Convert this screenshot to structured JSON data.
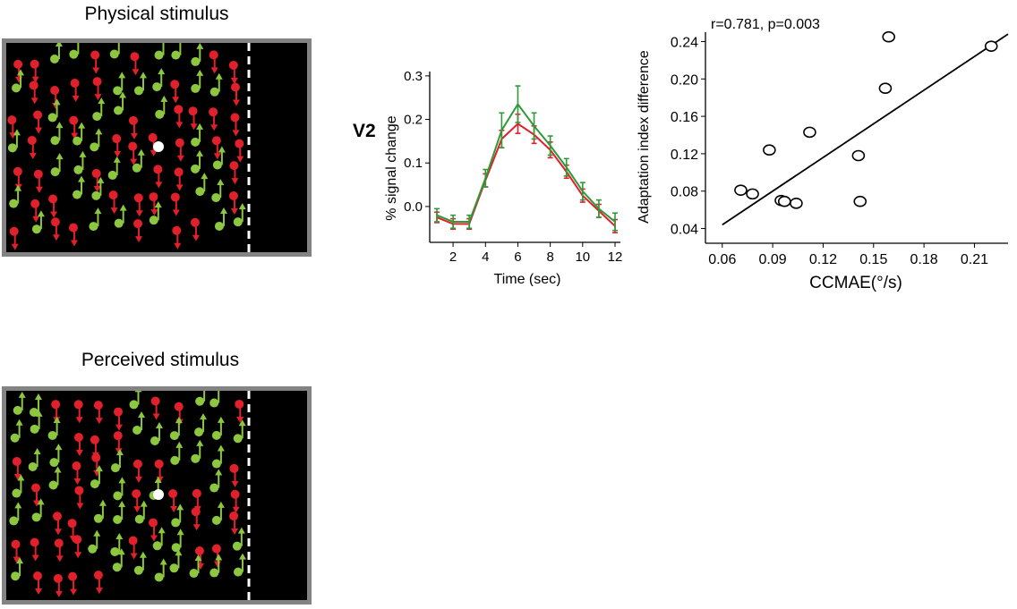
{
  "physical": {
    "title": "Physical stimulus"
  },
  "perceived": {
    "title": "Perceived stimulus"
  },
  "colors": {
    "red_dot": "#e0202a",
    "green_dot": "#8dc63f",
    "red_line": "#e0202a",
    "green_line": "#2f9a3a",
    "frame": "#838383",
    "fixation": "#ffffff"
  },
  "v2_label": "V2",
  "chart_data": [
    {
      "type": "line",
      "title": "",
      "xlabel": "Time (sec)",
      "ylabel": "% signal change",
      "xlim": [
        1,
        12
      ],
      "ylim": [
        -0.07,
        0.31
      ],
      "xticks": [
        2,
        4,
        6,
        8,
        10,
        12
      ],
      "yticks": [
        0.0,
        0.1,
        0.2,
        0.3
      ],
      "ytick_labels": [
        "0.0",
        "0.1",
        "0.2",
        "0.3"
      ],
      "x": [
        1,
        2,
        3,
        4,
        5,
        6,
        7,
        8,
        9,
        10,
        11,
        12
      ],
      "series": [
        {
          "color": "#e0202a",
          "values": [
            -0.025,
            -0.04,
            -0.04,
            0.06,
            0.155,
            0.19,
            0.165,
            0.13,
            0.08,
            0.025,
            -0.01,
            -0.045
          ],
          "errors": [
            0.012,
            0.012,
            0.012,
            0.015,
            0.02,
            0.022,
            0.02,
            0.018,
            0.015,
            0.015,
            0.015,
            0.015
          ]
        },
        {
          "color": "#2f9a3a",
          "values": [
            -0.02,
            -0.035,
            -0.035,
            0.065,
            0.175,
            0.235,
            0.185,
            0.14,
            0.09,
            0.035,
            -0.005,
            -0.035
          ],
          "errors": [
            0.015,
            0.015,
            0.015,
            0.02,
            0.04,
            0.042,
            0.03,
            0.022,
            0.02,
            0.02,
            0.02,
            0.02
          ]
        }
      ]
    },
    {
      "type": "scatter",
      "title": "",
      "annotation": "r=0.781, p=0.003",
      "xlabel": "CCMAE(°/s)",
      "ylabel": "Adaptation index difference",
      "xlim": [
        0.05,
        0.23
      ],
      "ylim": [
        0.03,
        0.25
      ],
      "xticks": [
        0.06,
        0.09,
        0.12,
        0.15,
        0.18,
        0.21
      ],
      "xtick_labels": [
        "0.06",
        "0.09",
        "0.12",
        "0.15",
        "0.18",
        "0.21"
      ],
      "yticks": [
        0.04,
        0.08,
        0.12,
        0.16,
        0.2,
        0.24
      ],
      "ytick_labels": [
        "0.04",
        "0.08",
        "0.12",
        "0.16",
        "0.20",
        "0.24"
      ],
      "points": [
        {
          "x": 0.071,
          "y": 0.081
        },
        {
          "x": 0.078,
          "y": 0.077
        },
        {
          "x": 0.088,
          "y": 0.124
        },
        {
          "x": 0.095,
          "y": 0.07
        },
        {
          "x": 0.097,
          "y": 0.069
        },
        {
          "x": 0.104,
          "y": 0.067
        },
        {
          "x": 0.112,
          "y": 0.143
        },
        {
          "x": 0.141,
          "y": 0.118
        },
        {
          "x": 0.142,
          "y": 0.069
        },
        {
          "x": 0.157,
          "y": 0.19
        },
        {
          "x": 0.159,
          "y": 0.245
        },
        {
          "x": 0.22,
          "y": 0.235
        }
      ],
      "fit_line": {
        "x": [
          0.06,
          0.23
        ],
        "y": [
          0.044,
          0.248
        ]
      }
    }
  ]
}
